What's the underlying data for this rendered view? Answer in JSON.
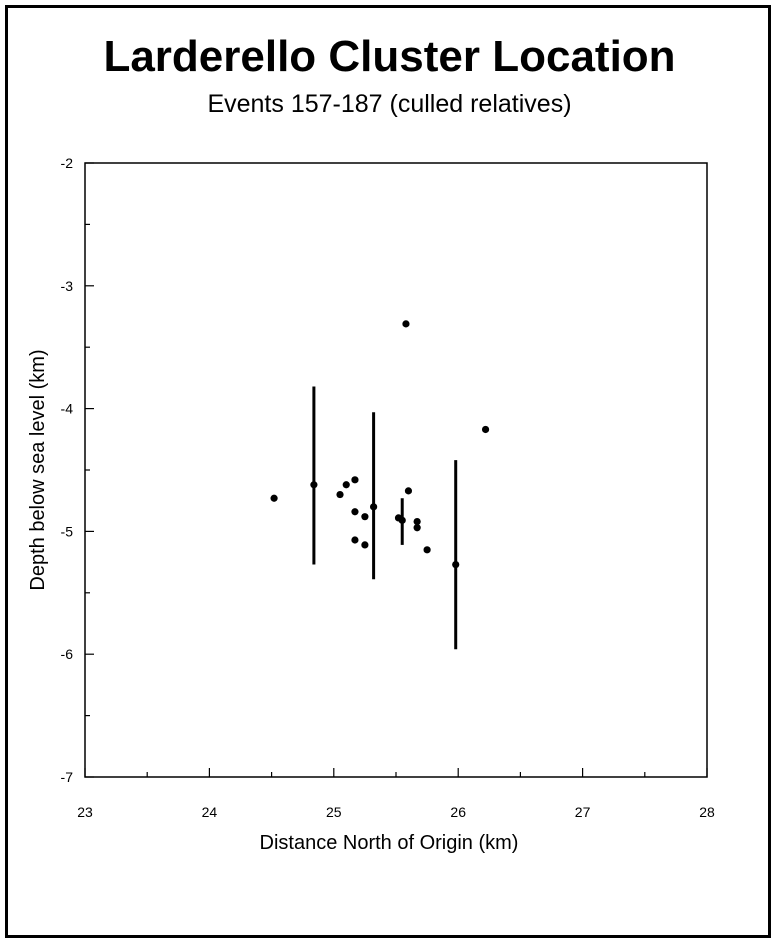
{
  "chart_data": {
    "type": "scatter",
    "title": "Larderello Cluster Location",
    "subtitle": "Events 157-187 (culled relatives)",
    "xlabel": "Distance North of Origin (km)",
    "ylabel": "Depth below sea level (km)",
    "xlim": [
      23,
      28
    ],
    "ylim": [
      -7,
      -2
    ],
    "x_ticks": [
      23,
      24,
      25,
      26,
      27,
      28
    ],
    "y_ticks": [
      -2,
      -3,
      -4,
      -5,
      -6,
      -7
    ],
    "grid": false,
    "legend": "none",
    "points": [
      {
        "x": 24.52,
        "y": -4.73
      },
      {
        "x": 24.84,
        "y": -4.62
      },
      {
        "x": 25.05,
        "y": -4.7
      },
      {
        "x": 25.1,
        "y": -4.62
      },
      {
        "x": 25.17,
        "y": -4.58
      },
      {
        "x": 25.17,
        "y": -4.84
      },
      {
        "x": 25.25,
        "y": -4.88
      },
      {
        "x": 25.17,
        "y": -5.07
      },
      {
        "x": 25.25,
        "y": -5.11
      },
      {
        "x": 25.32,
        "y": -4.8
      },
      {
        "x": 25.52,
        "y": -4.89
      },
      {
        "x": 25.55,
        "y": -4.91
      },
      {
        "x": 25.58,
        "y": -3.31
      },
      {
        "x": 25.6,
        "y": -4.67
      },
      {
        "x": 25.67,
        "y": -4.92
      },
      {
        "x": 25.67,
        "y": -4.97
      },
      {
        "x": 25.75,
        "y": -5.15
      },
      {
        "x": 25.98,
        "y": -5.27
      },
      {
        "x": 26.22,
        "y": -4.17
      }
    ],
    "error_bars": [
      {
        "x": 24.84,
        "y_low": -5.27,
        "y_high": -3.82
      },
      {
        "x": 25.32,
        "y_low": -5.39,
        "y_high": -4.03
      },
      {
        "x": 25.55,
        "y_low": -5.11,
        "y_high": -4.73
      },
      {
        "x": 25.98,
        "y_low": -5.96,
        "y_high": -4.42
      }
    ],
    "colors": {
      "points": "#000000",
      "axes": "#000000"
    }
  }
}
